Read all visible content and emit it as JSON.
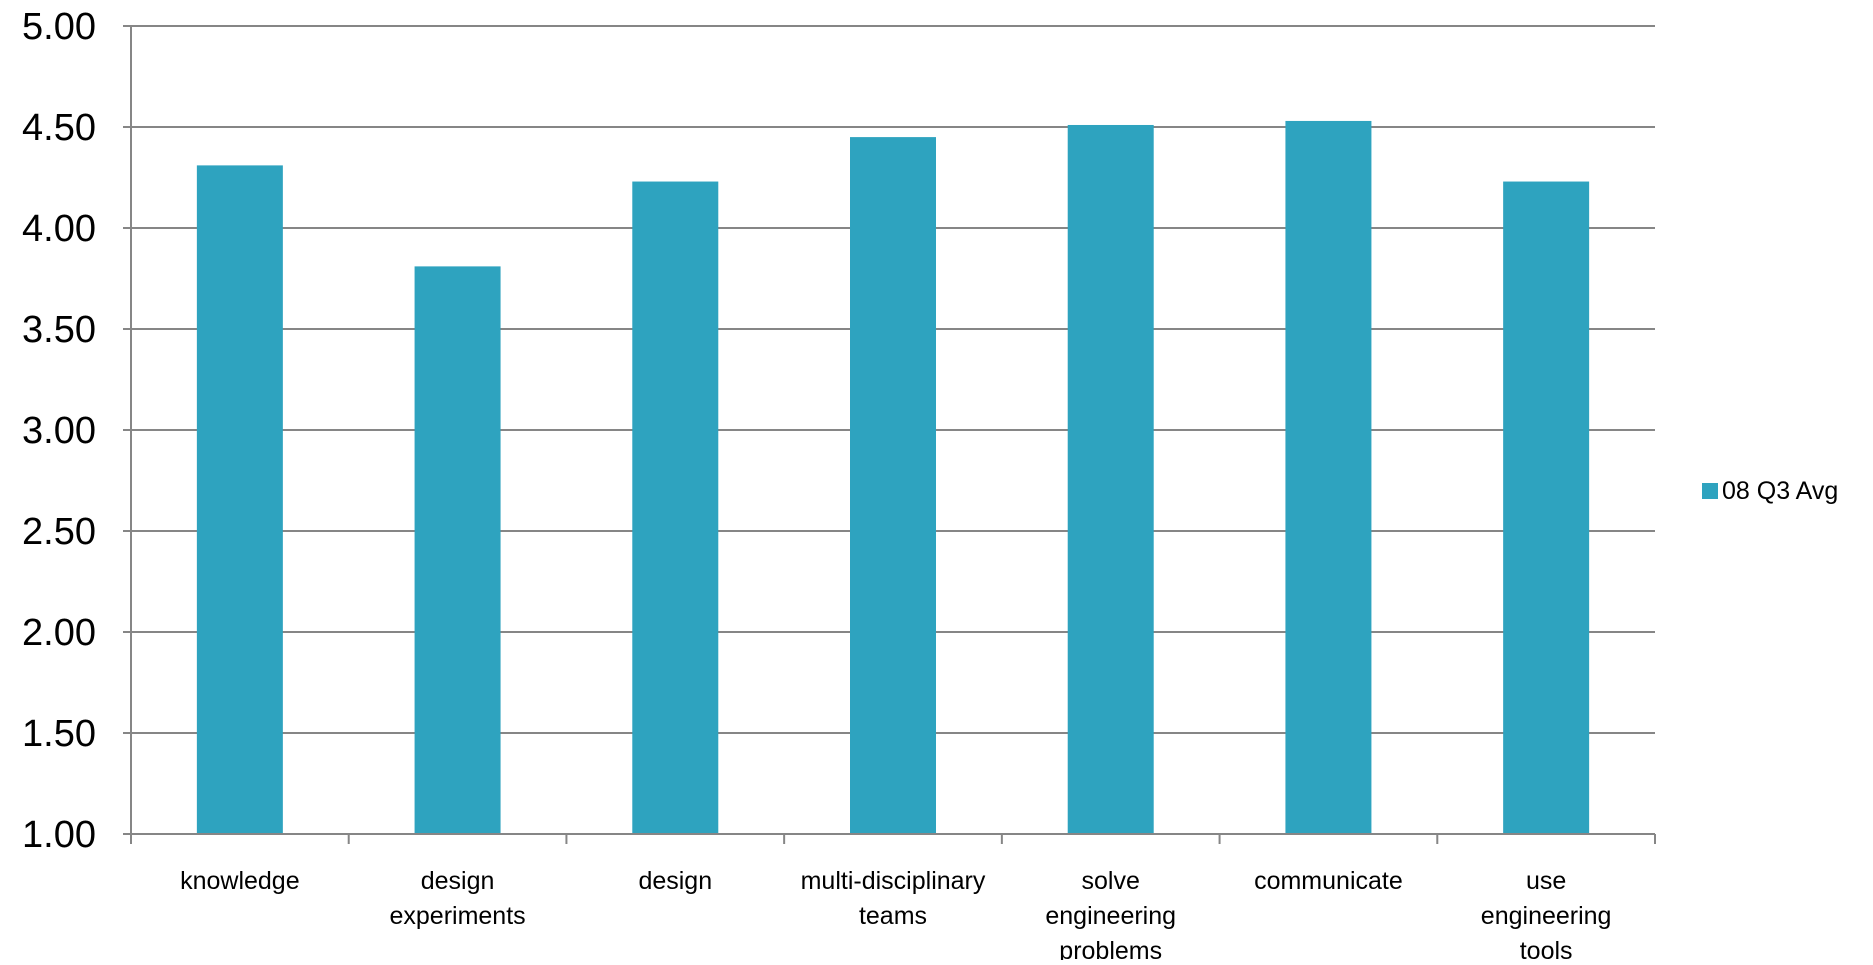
{
  "chart_data": {
    "type": "bar",
    "categories": [
      [
        "knowledge"
      ],
      [
        "design",
        "experiments"
      ],
      [
        "design"
      ],
      [
        "multi-disciplinary",
        "teams"
      ],
      [
        "solve",
        "engineering",
        "problems"
      ],
      [
        "communicate"
      ],
      [
        "use",
        "engineering",
        "tools"
      ]
    ],
    "series": [
      {
        "name": "08 Q3 Avg",
        "color": "#2ea3bf",
        "values": [
          4.31,
          3.81,
          4.23,
          4.45,
          4.51,
          4.53,
          4.23
        ]
      }
    ],
    "y_ticks": [
      "1.00",
      "1.50",
      "2.00",
      "2.50",
      "3.00",
      "3.50",
      "4.00",
      "4.50",
      "5.00"
    ],
    "ylim": [
      1.0,
      5.0
    ],
    "y_step": 0.5,
    "grid": true,
    "gridline_color": "#868686",
    "legend_position": "right",
    "title": "",
    "xlabel": "",
    "ylabel": ""
  }
}
